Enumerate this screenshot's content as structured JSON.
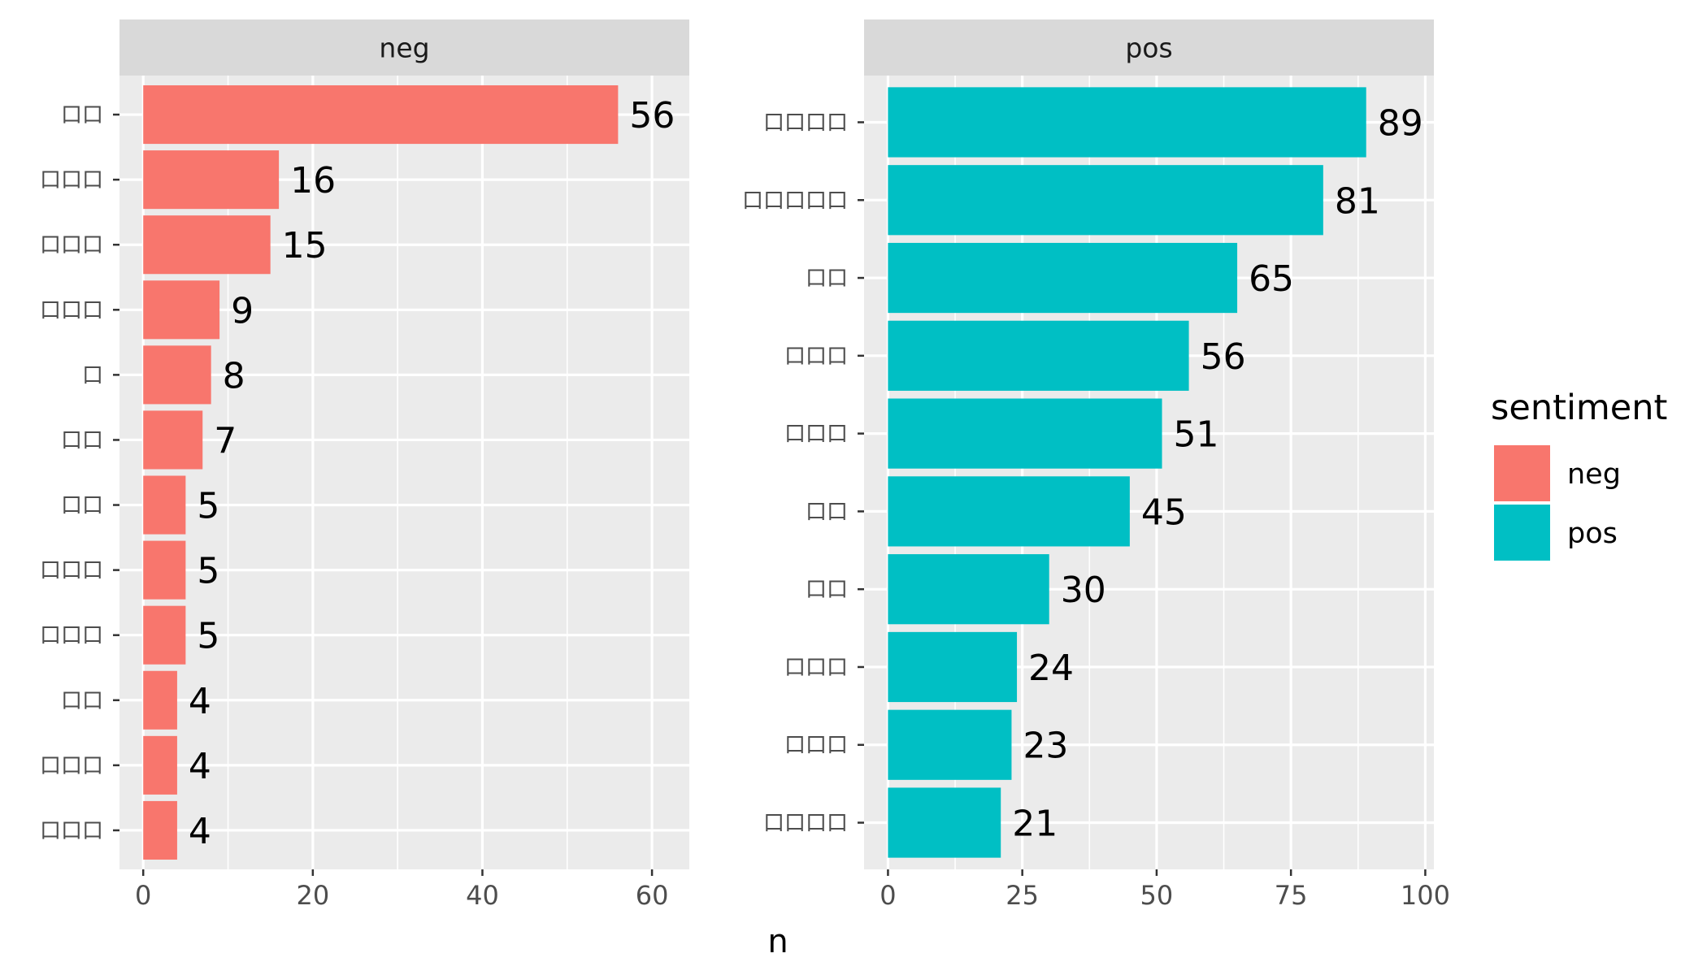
{
  "chart_data": {
    "type": "bar",
    "orientation": "horizontal",
    "xlabel": "n",
    "ylabel": "",
    "grid": true,
    "legend": {
      "title": "sentiment",
      "placement": "right",
      "entries": [
        {
          "label": "neg",
          "color": "#F8766D"
        },
        {
          "label": "pos",
          "color": "#00BFC4"
        }
      ]
    },
    "facets": [
      {
        "strip": "neg",
        "color": "#F8766D",
        "categories": [
          "口口",
          "口口口",
          "口口口",
          "口口口",
          "口",
          "口口",
          "口口",
          "口口口",
          "口口口",
          "口口",
          "口口口",
          "口口口"
        ],
        "values": [
          56,
          16,
          15,
          9,
          8,
          7,
          5,
          5,
          5,
          4,
          4,
          4
        ],
        "xlim": [
          -2.8,
          64.4
        ],
        "xticks": [
          0,
          20,
          40,
          60
        ],
        "xtick_labels": [
          "0",
          "20",
          "40",
          "60"
        ]
      },
      {
        "strip": "pos",
        "color": "#00BFC4",
        "categories": [
          "口口口口",
          "口口口口口",
          "口口",
          "口口口",
          "口口口",
          "口口",
          "口口",
          "口口口",
          "口口口",
          "口口口口"
        ],
        "values": [
          89,
          81,
          65,
          56,
          51,
          45,
          30,
          24,
          23,
          21
        ],
        "xlim": [
          -4.45,
          101.6
        ],
        "xticks": [
          0,
          25,
          50,
          75,
          100
        ],
        "xtick_labels": [
          "0",
          "25",
          "50",
          "75",
          "100"
        ]
      }
    ]
  }
}
